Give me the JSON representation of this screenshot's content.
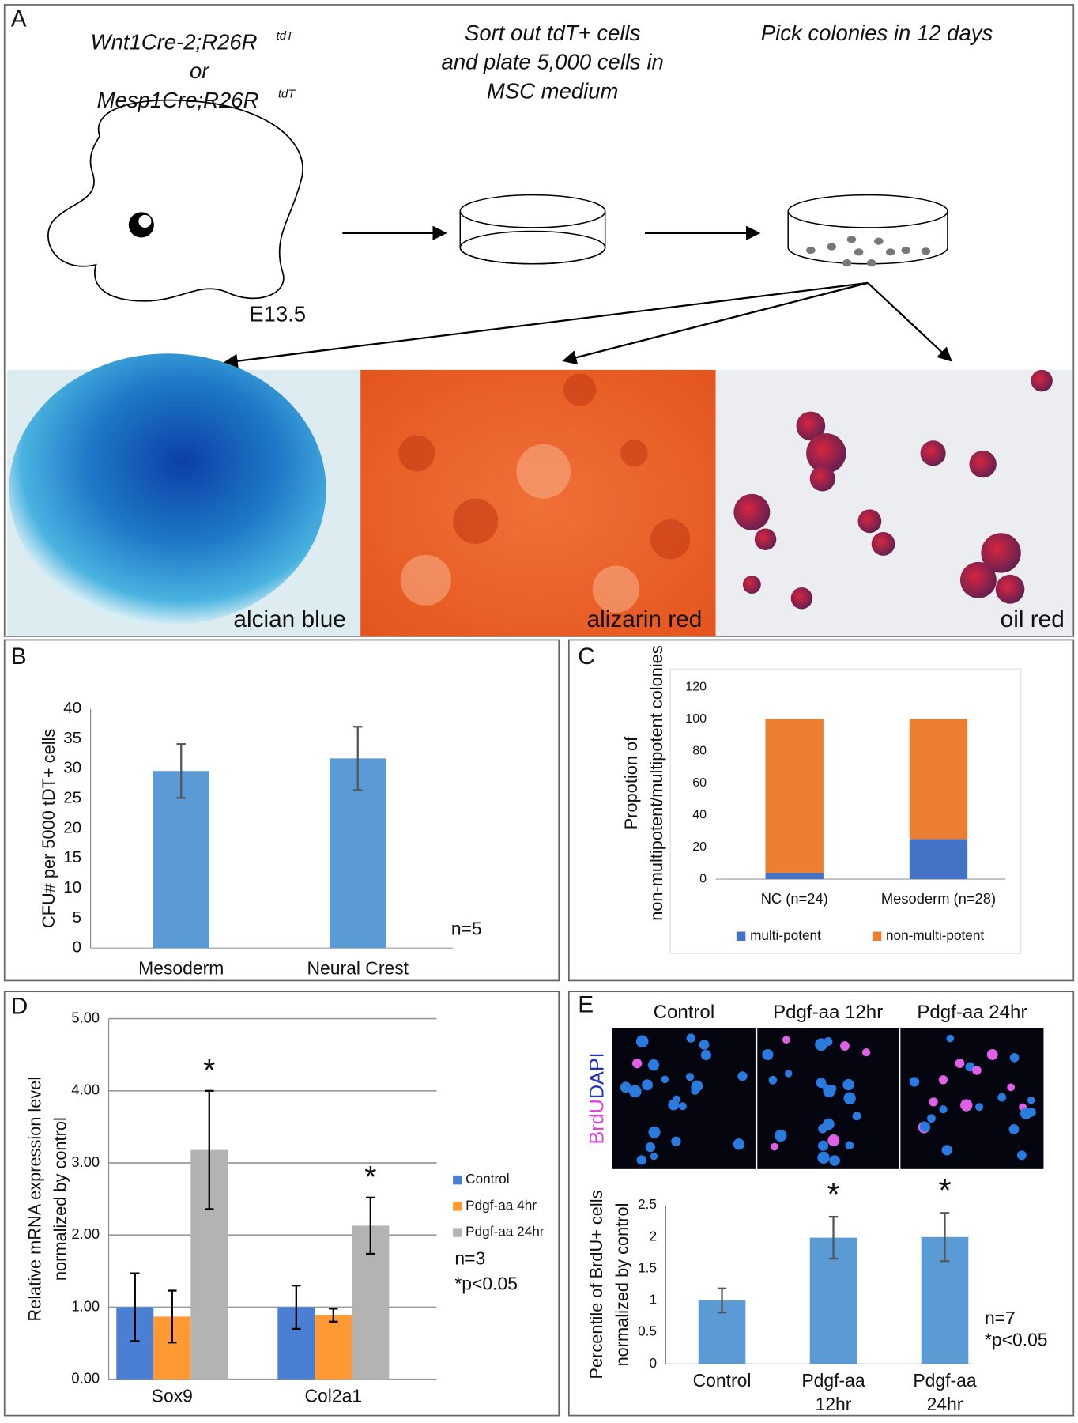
{
  "panel_a": {
    "label": "A",
    "source_lines": [
      "Wnt1Cre-2;R26R",
      "tdT",
      "or",
      "Mesp1Cre;R26R",
      "tdT"
    ],
    "sort_lines": [
      "Sort out tdT+ cells",
      "and plate 5,000 cells in",
      "MSC medium"
    ],
    "pick": "Pick colonies in 12 days",
    "stage": "E13.5",
    "stains": [
      "alcian blue",
      "alizarin red",
      "oil red"
    ]
  },
  "chart_data": [
    {
      "type": "bar",
      "panel_label": "B",
      "categories": [
        "Mesoderm",
        "Neural Crest"
      ],
      "values": [
        29.6,
        31.7
      ],
      "errors": [
        4.5,
        5.3
      ],
      "color": "#5b9bd5",
      "ylabel": [
        "CFU# per 5000 tDT+ cells"
      ],
      "ylim": [
        0,
        40
      ],
      "yticks": [
        0,
        5,
        10,
        15,
        20,
        25,
        30,
        35,
        40
      ],
      "grid": false,
      "annotations": [
        "n=5"
      ]
    },
    {
      "type": "stacked_bar",
      "panel_label": "C",
      "categories": [
        "NC (n=24)",
        "Mesoderm (n=28)"
      ],
      "series": [
        {
          "name": "multi-potent",
          "color": "#4472c4",
          "values": [
            4,
            25
          ]
        },
        {
          "name": "non-multi-potent",
          "color": "#ed7d31",
          "values": [
            96,
            75
          ]
        }
      ],
      "ylabel": [
        "Propotion of",
        "non-multipotent/multipotent colonies"
      ],
      "ylim": [
        0,
        120
      ],
      "yticks": [
        0,
        20,
        40,
        60,
        80,
        100,
        120
      ],
      "grid": false,
      "legend": "bottom"
    },
    {
      "type": "grouped_bar",
      "panel_label": "D",
      "categories": [
        "Sox9",
        "Col2a1"
      ],
      "series": [
        {
          "name": "Control",
          "color": "#4a7fd4",
          "values": [
            1.0,
            1.0
          ],
          "errors": [
            0.47,
            0.3
          ]
        },
        {
          "name": "Pdgf-aa 4hr",
          "color": "#ff9933",
          "values": [
            0.87,
            0.89
          ],
          "errors": [
            0.36,
            0.09
          ]
        },
        {
          "name": "Pdgf-aa 24hr",
          "color": "#b3b3b3",
          "values": [
            3.18,
            2.13
          ],
          "errors": [
            0.82,
            0.39
          ],
          "significance": [
            "*",
            "*"
          ]
        }
      ],
      "ylabel": [
        "Relative mRNA expression level",
        "normalized by control"
      ],
      "ylim": [
        0,
        5
      ],
      "yticks": [
        {
          "value": 0,
          "label": "0.00"
        },
        {
          "value": 1,
          "label": "1.00"
        },
        {
          "value": 2,
          "label": "2.00"
        },
        {
          "value": 3,
          "label": "3.00"
        },
        {
          "value": 4,
          "label": "4.00"
        },
        {
          "value": 5,
          "label": "5.00"
        }
      ],
      "grid": true,
      "legend": "right",
      "annotations": [
        "n=3",
        "*p<0.05"
      ]
    },
    {
      "type": "bar",
      "panel_label": "E",
      "image_labels": [
        "Control",
        "Pdgf-aa 12hr",
        "Pdgf-aa 24hr"
      ],
      "stain_labels": [
        "BrdU",
        "DAPI"
      ],
      "categories": [
        [
          "Control"
        ],
        [
          "Pdgf-aa",
          "12hr"
        ],
        [
          "Pdgf-aa",
          "24hr"
        ]
      ],
      "values": [
        1.0,
        1.99,
        2.0
      ],
      "errors": [
        0.19,
        0.33,
        0.38
      ],
      "significance": [
        null,
        "*",
        "*"
      ],
      "color": "#5b9bd5",
      "ylabel": [
        "Percentile of BrdU+ cells",
        "normalized by control"
      ],
      "ylim": [
        0,
        2.5
      ],
      "yticks": [
        0,
        0.5,
        1,
        1.5,
        2,
        2.5
      ],
      "grid": false,
      "annotations": [
        "n=7",
        "*p<0.05"
      ]
    }
  ]
}
